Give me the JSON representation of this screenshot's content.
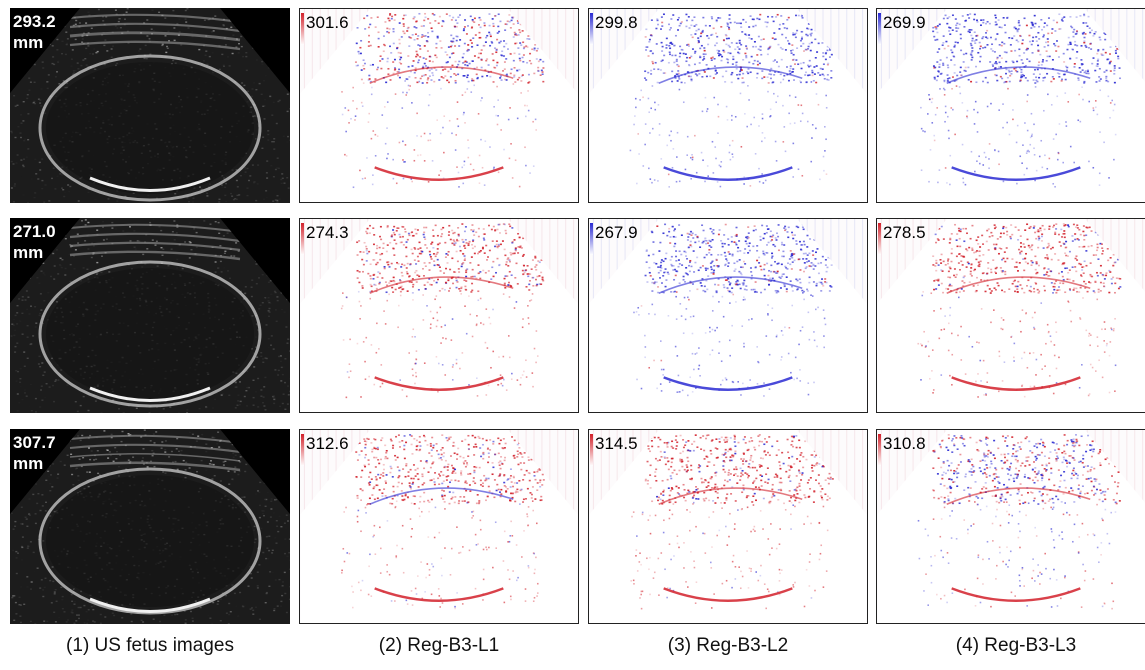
{
  "rows": [
    {
      "us_value": "293.2",
      "us_unit": "mm",
      "maps": [
        {
          "value": "301.6",
          "scheme": "mixed"
        },
        {
          "value": "299.8",
          "scheme": "blue"
        },
        {
          "value": "269.9",
          "scheme": "blue"
        }
      ]
    },
    {
      "us_value": "271.0",
      "us_unit": "mm",
      "maps": [
        {
          "value": "274.3",
          "scheme": "red"
        },
        {
          "value": "267.9",
          "scheme": "blue"
        },
        {
          "value": "278.5",
          "scheme": "red"
        }
      ]
    },
    {
      "us_value": "307.7",
      "us_unit": "mm",
      "maps": [
        {
          "value": "312.6",
          "scheme": "red"
        },
        {
          "value": "314.5",
          "scheme": "red"
        },
        {
          "value": "310.8",
          "scheme": "mixed"
        }
      ]
    }
  ],
  "captions": [
    "(1) US fetus images",
    "(2) Reg-B3-L1",
    "(3) Reg-B3-L2",
    "(4) Reg-B3-L3"
  ],
  "colors": {
    "red": "#d2202a",
    "blue": "#2a2ad2",
    "us_background": "#000000"
  }
}
